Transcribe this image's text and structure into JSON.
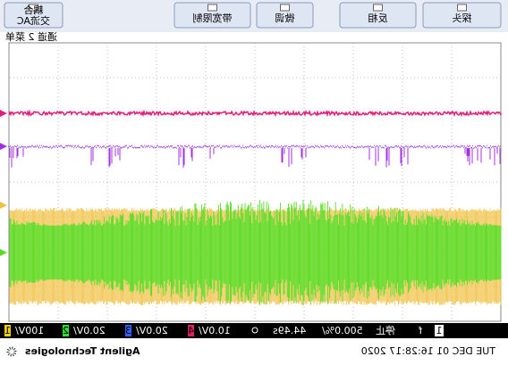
{
  "menu": {
    "title": "通道 2 菜单",
    "buttons": [
      {
        "top": "耦合",
        "label": "交流AC"
      },
      {
        "label": "带宽限制"
      },
      {
        "label": "微调"
      },
      {
        "label": "反相"
      },
      {
        "label": "探头"
      }
    ]
  },
  "status": {
    "channels": [
      {
        "num": "1",
        "scale": "100V/"
      },
      {
        "num": "2",
        "scale": "20.0V/"
      },
      {
        "num": "3",
        "scale": "20.0V/"
      },
      {
        "num": "4",
        "scale": "10.0V/"
      }
    ],
    "time": "44.49s",
    "timebase": "500.0%/",
    "run": "停止",
    "trigger": "f",
    "trigger_source": "1"
  },
  "footer": {
    "brand": "Agilent Technologies",
    "date": "TUE DEC 01 16:28:17 2020"
  }
}
